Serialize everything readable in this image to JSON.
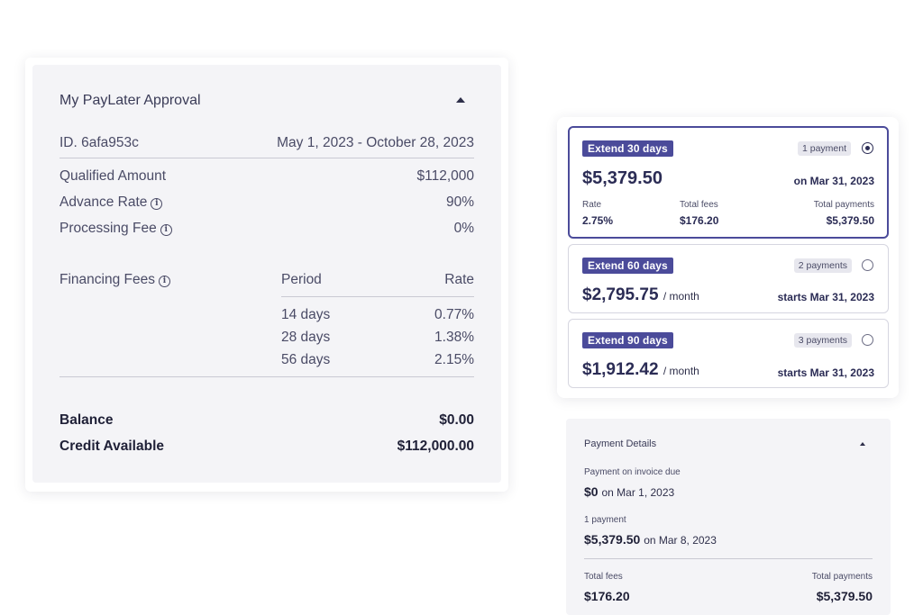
{
  "approval": {
    "title": "My PayLater Approval",
    "id_label": "ID. 6afa953c",
    "date_range": "May 1, 2023 - October 28, 2023",
    "qualified_amount": {
      "label": "Qualified Amount",
      "value": "$112,000"
    },
    "advance_rate": {
      "label": "Advance Rate",
      "value": "90%"
    },
    "processing_fee": {
      "label": "Processing Fee",
      "value": "0%"
    },
    "financing": {
      "label": "Financing Fees",
      "period_header": "Period",
      "rate_header": "Rate",
      "rows": [
        {
          "period": "14 days",
          "rate": "0.77%"
        },
        {
          "period": "28 days",
          "rate": "1.38%"
        },
        {
          "period": "56 days",
          "rate": "2.15%"
        }
      ]
    },
    "balance": {
      "label": "Balance",
      "value": "$0.00"
    },
    "credit_available": {
      "label": "Credit Available",
      "value": "$112,000.00"
    }
  },
  "options": [
    {
      "badge": "Extend 30 days",
      "payments": "1 payment",
      "amount": "$5,379.50",
      "date_note": "on Mar 31, 2023",
      "rate_label": "Rate",
      "rate_value": "2.75%",
      "fees_label": "Total fees",
      "fees_value": "$176.20",
      "total_label": "Total payments",
      "total_value": "$5,379.50"
    },
    {
      "badge": "Extend 60 days",
      "payments": "2 payments",
      "amount": "$2,795.75",
      "per": "/ month",
      "date_note": "starts Mar 31, 2023"
    },
    {
      "badge": "Extend 90 days",
      "payments": "3 payments",
      "amount": "$1,912.42",
      "per": "/ month",
      "date_note": "starts Mar 31, 2023"
    }
  ],
  "details": {
    "title": "Payment Details",
    "due_label": "Payment on invoice due",
    "due_amount": "$0",
    "due_date": "on Mar 1, 2023",
    "payment_label": "1 payment",
    "payment_amount": "$5,379.50",
    "payment_date": "on Mar 8, 2023",
    "fees_label": "Total fees",
    "fees_value": "$176.20",
    "total_label": "Total payments",
    "total_value": "$5,379.50"
  },
  "icons": {
    "info": "info-icon",
    "collapse": "chevron-up-icon",
    "radio": "radio-button"
  },
  "colors": {
    "accent": "#4b4b9a",
    "card_bg": "#f4f4f7"
  }
}
